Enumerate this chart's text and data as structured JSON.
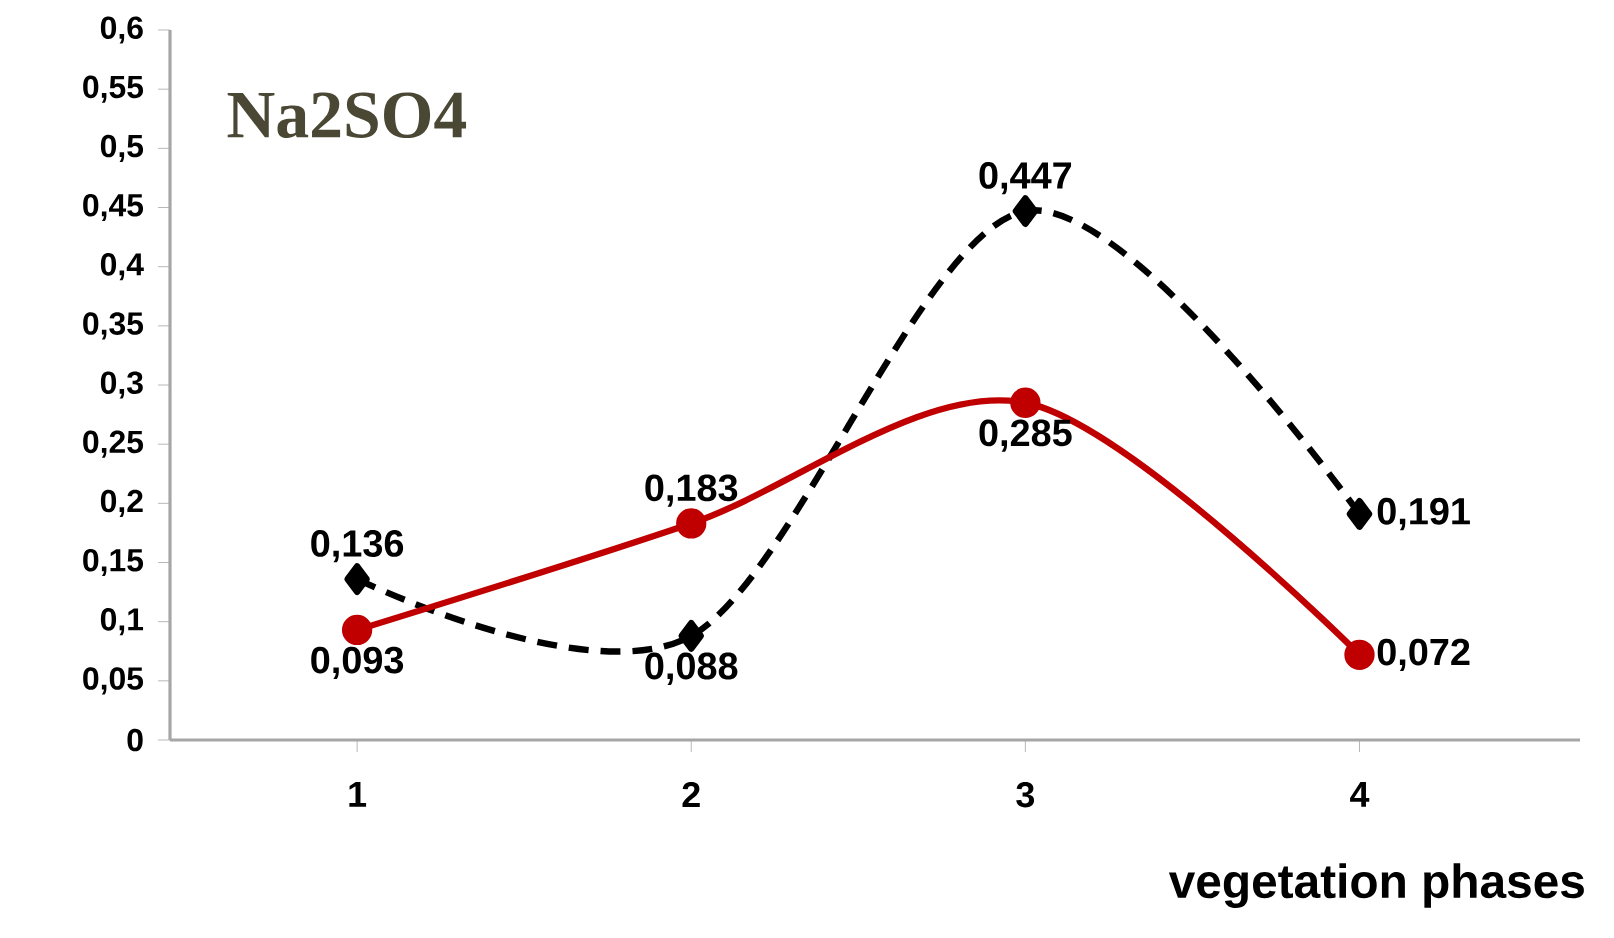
{
  "chart_data": {
    "type": "line",
    "title": "Na2SO4",
    "xlabel": "vegetation phases",
    "categories": [
      "1",
      "2",
      "3",
      "4"
    ],
    "series": [
      {
        "color": "#000000",
        "line_style": "dashed",
        "marker": "diamond",
        "values": [
          0.136,
          0.088,
          0.447,
          0.191
        ],
        "value_labels": [
          "0,136",
          "0,088",
          "0,447",
          "0,191"
        ]
      },
      {
        "color": "#c00000",
        "line_style": "solid",
        "marker": "circle",
        "values": [
          0.093,
          0.183,
          0.285,
          0.072
        ],
        "value_labels": [
          "0,093",
          "0,183",
          "0,285",
          "0,072"
        ]
      }
    ],
    "ylim": [
      0,
      0.6
    ],
    "yticks": [
      0,
      {
        "value": 0.05,
        "label": "0,05"
      },
      {
        "value": 0.1,
        "label": "0,1"
      },
      {
        "value": 0.15,
        "label": "0,15"
      },
      {
        "value": 0.2,
        "label": "0,2"
      },
      {
        "value": 0.25,
        "label": "0,25"
      },
      {
        "value": 0.3,
        "label": "0,3"
      },
      {
        "value": 0.35,
        "label": "0,35"
      },
      {
        "value": 0.4,
        "label": "0,4"
      },
      {
        "value": 0.45,
        "label": "0,45"
      },
      {
        "value": 0.5,
        "label": "0,5"
      },
      {
        "value": 0.55,
        "label": "0,55"
      },
      {
        "value": 0.6,
        "label": "0,6"
      }
    ],
    "grid": false
  }
}
